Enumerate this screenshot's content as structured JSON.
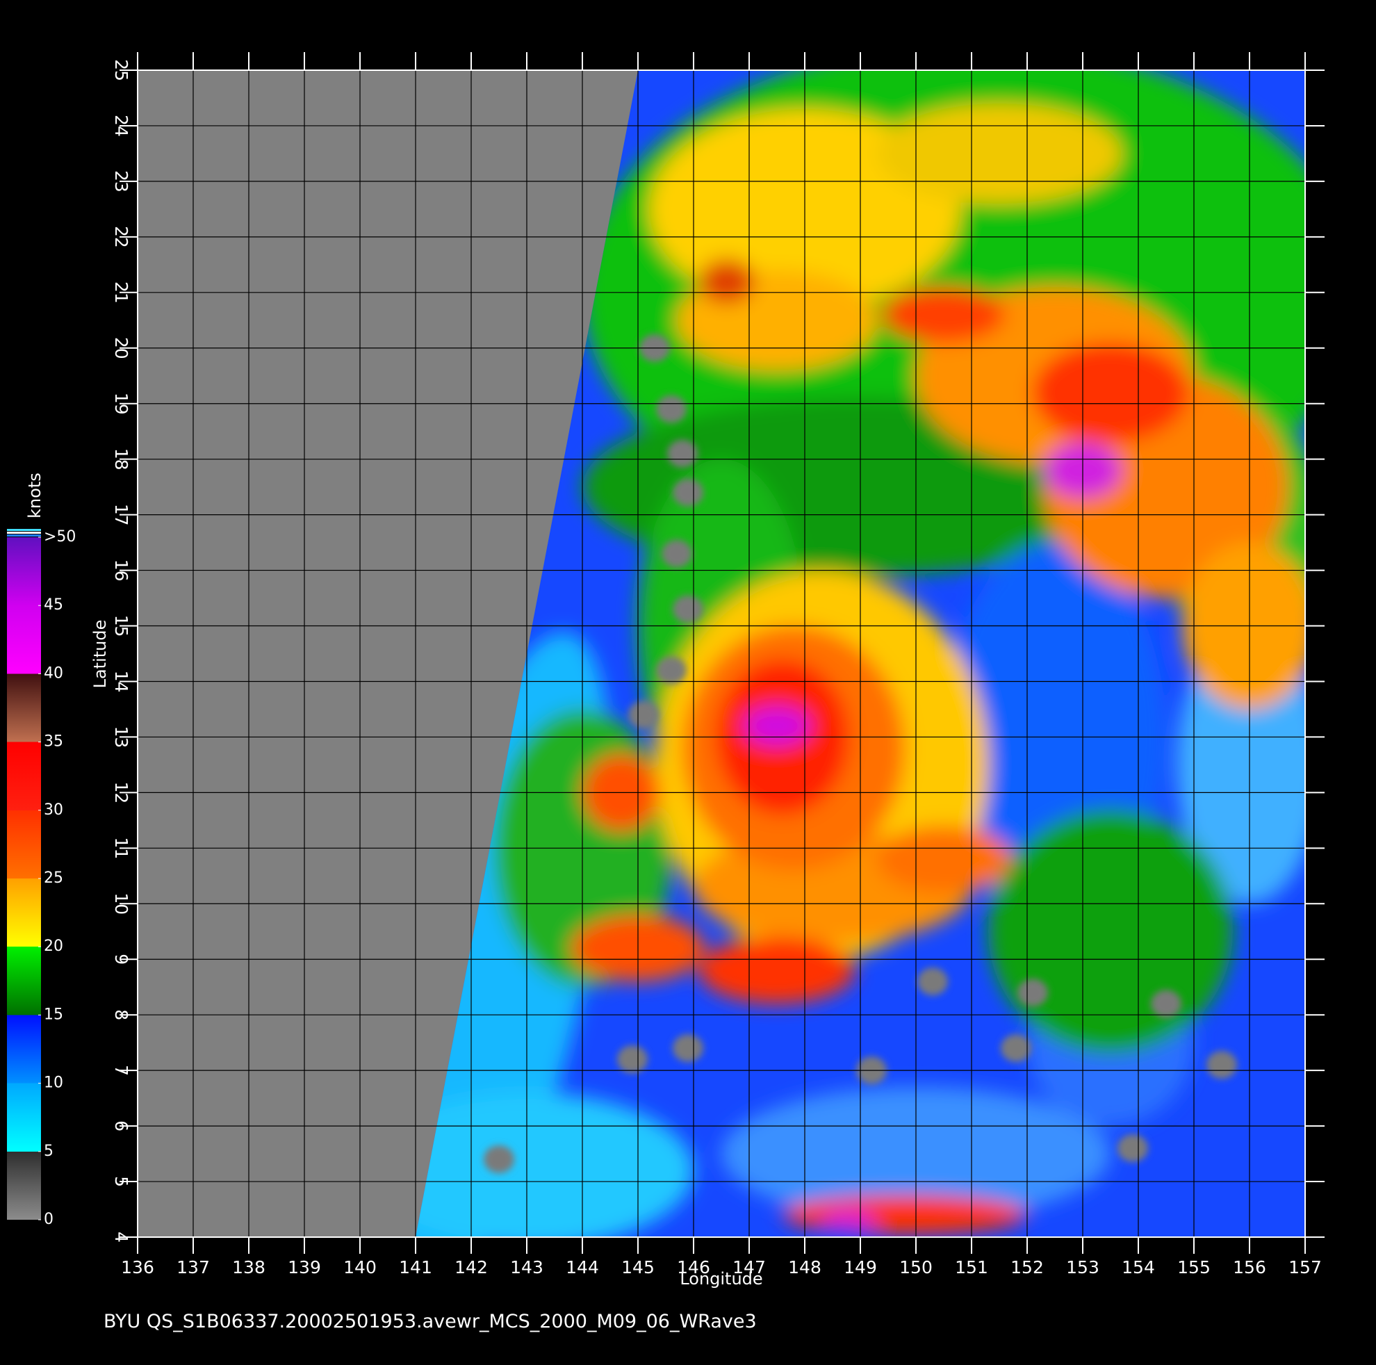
{
  "chart_data": {
    "type": "map",
    "title": "BYU  QS_S1B06337.20002501953.avewr_MCS_2000_M09_06_WRave3",
    "x_label": "Longitude",
    "y_label": "Latitude",
    "xlim": [
      136,
      157
    ],
    "ylim": [
      4,
      25
    ],
    "xticks": [
      136,
      137,
      138,
      139,
      140,
      141,
      142,
      143,
      144,
      145,
      146,
      147,
      148,
      149,
      150,
      151,
      152,
      153,
      154,
      155,
      156,
      157
    ],
    "yticks": [
      4,
      5,
      6,
      7,
      8,
      9,
      10,
      11,
      12,
      13,
      14,
      15,
      16,
      17,
      18,
      19,
      20,
      21,
      22,
      23,
      24,
      25
    ],
    "grid": true,
    "colorbar": {
      "label": "knots",
      "range": [
        0,
        50
      ],
      "ticks": [
        0,
        5,
        10,
        15,
        20,
        25,
        30,
        35,
        40,
        45,
        {
          "value": 50,
          "label": ">50"
        }
      ],
      "stops": [
        {
          "value": 0,
          "color": "#8c8c8c"
        },
        {
          "value": 5,
          "color": "#2e2e2e"
        },
        {
          "value": 5,
          "color": "#00ffff"
        },
        {
          "value": 10,
          "color": "#00a8ff"
        },
        {
          "value": 10,
          "color": "#0090ff"
        },
        {
          "value": 15,
          "color": "#0010ff"
        },
        {
          "value": 15,
          "color": "#007000"
        },
        {
          "value": 20,
          "color": "#00f000"
        },
        {
          "value": 20,
          "color": "#ffff00"
        },
        {
          "value": 25,
          "color": "#ffa000"
        },
        {
          "value": 25,
          "color": "#ff7000"
        },
        {
          "value": 30,
          "color": "#ff3000"
        },
        {
          "value": 30,
          "color": "#ff2010"
        },
        {
          "value": 35,
          "color": "#ff0000"
        },
        {
          "value": 35,
          "color": "#c07050"
        },
        {
          "value": 40,
          "color": "#401010"
        },
        {
          "value": 40,
          "color": "#ff00ff"
        },
        {
          "value": 45,
          "color": "#d000f0"
        },
        {
          "value": 50,
          "color": "#6010c0"
        }
      ]
    }
  }
}
